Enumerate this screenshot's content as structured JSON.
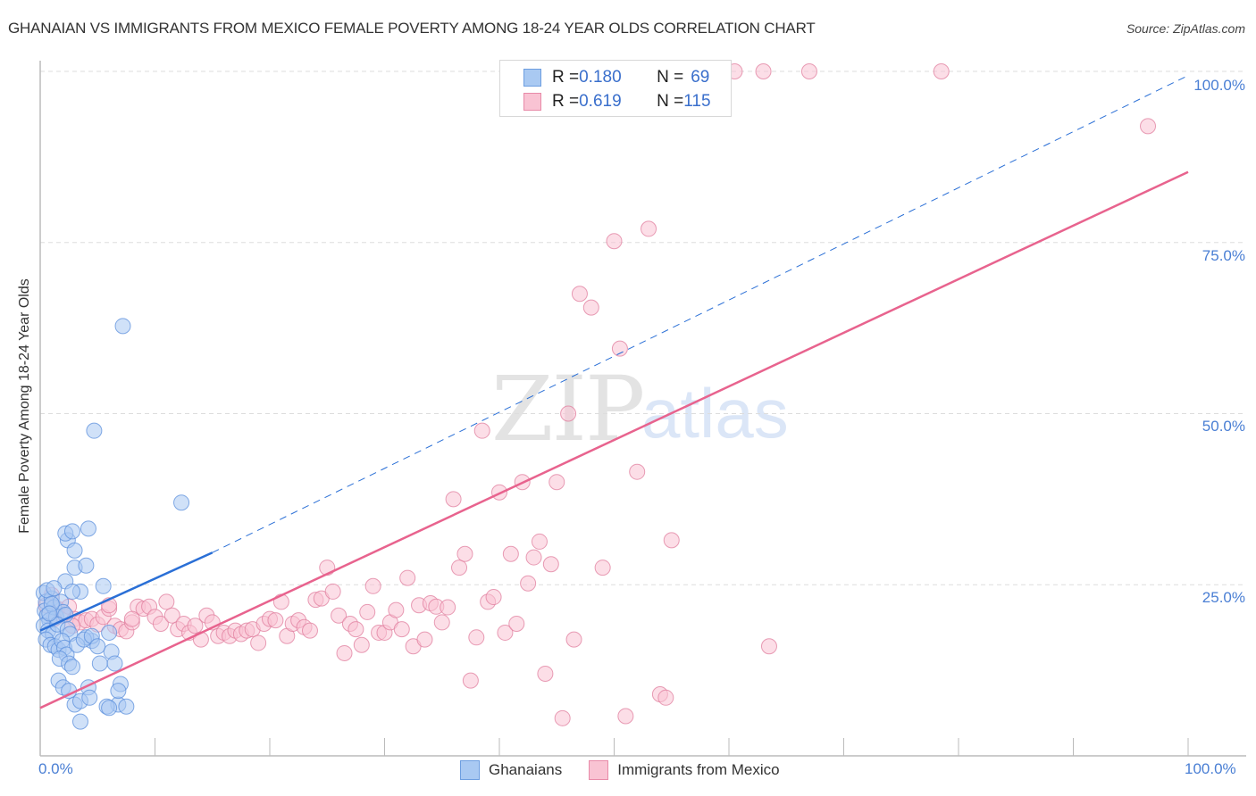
{
  "header": {
    "title": "GHANAIAN VS IMMIGRANTS FROM MEXICO FEMALE POVERTY AMONG 18-24 YEAR OLDS CORRELATION CHART",
    "source": "Source: ZipAtlas.com"
  },
  "watermark": {
    "zip": "ZIP",
    "atlas": "atlas"
  },
  "axes": {
    "ylabel": "Female Poverty Among 18-24 Year Olds",
    "yticks": [
      "100.0%",
      "75.0%",
      "50.0%",
      "25.0%"
    ],
    "xticks": [
      "0.0%",
      "100.0%"
    ]
  },
  "legend": {
    "rows": [
      {
        "r_label": "R = ",
        "r_value": "0.180",
        "n_label": "N = ",
        "n_value": "69",
        "color": "#a9c9f2",
        "border": "#6d9ee0"
      },
      {
        "r_label": "R = ",
        "r_value": "0.619",
        "n_label": "N = ",
        "n_value": "115",
        "color": "#f9c3d3",
        "border": "#e88aa8"
      }
    ]
  },
  "bottom_legend": [
    {
      "label": "Ghanaians",
      "color": "#a9c9f2",
      "border": "#6d9ee0"
    },
    {
      "label": "Immigrants from Mexico",
      "color": "#f9c3d3",
      "border": "#e88aa8"
    }
  ],
  "colors": {
    "blue_point": "#a9c9f2",
    "blue_stroke": "#5b8fdc",
    "blue_line": "#2a6fd6",
    "pink_point": "#f9c3d3",
    "pink_stroke": "#e07d9d",
    "pink_line": "#e8638e",
    "grid": "#dddddd",
    "axis": "#bbbbbb",
    "tick_label": "#4a7fd4"
  },
  "chart_data": {
    "type": "scatter",
    "title": "GHANAIAN VS IMMIGRANTS FROM MEXICO FEMALE POVERTY AMONG 18-24 YEAR OLDS CORRELATION CHART",
    "xlabel": "",
    "ylabel": "Female Poverty Among 18-24 Year Olds",
    "xlim": [
      0,
      100
    ],
    "ylim": [
      0,
      100
    ],
    "x_tick_labels": [
      "0.0%",
      "100.0%"
    ],
    "y_tick_labels": [
      "25.0%",
      "50.0%",
      "75.0%",
      "100.0%"
    ],
    "grid": true,
    "legend_position": "top-center",
    "series": [
      {
        "name": "Ghanaians",
        "R": 0.18,
        "N": 69,
        "color": "#a9c9f2",
        "trendline": {
          "x": [
            0,
            15,
            100
          ],
          "y": [
            18.3,
            29.7,
            99.4
          ],
          "solid_until_x": 15
        },
        "points": [
          [
            0.3,
            23.8
          ],
          [
            0.5,
            22.5
          ],
          [
            0.4,
            21.2
          ],
          [
            0.6,
            20.5
          ],
          [
            0.8,
            19.8
          ],
          [
            1.0,
            23.0
          ],
          [
            1.2,
            21.7
          ],
          [
            1.4,
            20.3
          ],
          [
            0.3,
            19.0
          ],
          [
            0.7,
            18.3
          ],
          [
            1.1,
            17.8
          ],
          [
            0.5,
            17.0
          ],
          [
            0.9,
            16.2
          ],
          [
            1.3,
            16.0
          ],
          [
            1.6,
            15.5
          ],
          [
            0.6,
            24.2
          ],
          [
            1.8,
            22.5
          ],
          [
            2.0,
            21.0
          ],
          [
            2.2,
            20.6
          ],
          [
            1.5,
            19.2
          ],
          [
            2.4,
            18.5
          ],
          [
            2.6,
            17.8
          ],
          [
            1.9,
            16.8
          ],
          [
            2.1,
            15.8
          ],
          [
            2.3,
            14.8
          ],
          [
            1.7,
            14.2
          ],
          [
            2.5,
            13.5
          ],
          [
            2.8,
            13.0
          ],
          [
            1.6,
            11.0
          ],
          [
            2.0,
            10.0
          ],
          [
            2.5,
            9.5
          ],
          [
            3.0,
            7.5
          ],
          [
            3.5,
            8.0
          ],
          [
            3.5,
            5.0
          ],
          [
            4.2,
            10.0
          ],
          [
            4.3,
            8.5
          ],
          [
            4.5,
            16.8
          ],
          [
            4.0,
            17.3
          ],
          [
            3.2,
            16.2
          ],
          [
            3.8,
            17.0
          ],
          [
            5.2,
            13.5
          ],
          [
            5.5,
            24.8
          ],
          [
            6.2,
            15.2
          ],
          [
            6.5,
            13.5
          ],
          [
            6.0,
            18.0
          ],
          [
            6.8,
            7.5
          ],
          [
            5.8,
            7.2
          ],
          [
            6.0,
            7.0
          ],
          [
            7.0,
            10.5
          ],
          [
            6.8,
            9.5
          ],
          [
            7.5,
            7.2
          ],
          [
            2.4,
            31.5
          ],
          [
            2.2,
            32.5
          ],
          [
            2.8,
            32.8
          ],
          [
            3.0,
            30.0
          ],
          [
            3.0,
            27.5
          ],
          [
            4.0,
            27.8
          ],
          [
            4.2,
            33.2
          ],
          [
            2.2,
            25.5
          ],
          [
            3.5,
            24.0
          ],
          [
            2.8,
            24.0
          ],
          [
            1.2,
            24.5
          ],
          [
            4.5,
            17.5
          ],
          [
            5.0,
            16.0
          ],
          [
            7.2,
            62.8
          ],
          [
            4.7,
            47.5
          ],
          [
            12.3,
            37.0
          ],
          [
            1.0,
            22.2
          ],
          [
            0.8,
            20.8
          ]
        ]
      },
      {
        "name": "Immigrants from Mexico",
        "R": 0.619,
        "N": 115,
        "color": "#f9c3d3",
        "trendline": {
          "x": [
            0,
            100
          ],
          "y": [
            7.0,
            85.3
          ]
        },
        "points": [
          [
            1.5,
            21.5
          ],
          [
            2.0,
            20.5
          ],
          [
            2.5,
            21.8
          ],
          [
            3.0,
            20.0
          ],
          [
            3.5,
            19.5
          ],
          [
            4.0,
            19.8
          ],
          [
            4.5,
            20.0
          ],
          [
            5.0,
            19.2
          ],
          [
            5.5,
            20.3
          ],
          [
            6.0,
            21.5
          ],
          [
            6.5,
            19.0
          ],
          [
            7.0,
            18.5
          ],
          [
            7.5,
            18.2
          ],
          [
            8.0,
            19.5
          ],
          [
            8.5,
            21.8
          ],
          [
            9.0,
            21.5
          ],
          [
            9.5,
            21.8
          ],
          [
            10.0,
            20.3
          ],
          [
            10.5,
            19.3
          ],
          [
            11.0,
            22.5
          ],
          [
            11.5,
            20.5
          ],
          [
            12.0,
            18.5
          ],
          [
            12.5,
            19.3
          ],
          [
            13.0,
            18.0
          ],
          [
            13.5,
            19.0
          ],
          [
            14.0,
            17.0
          ],
          [
            14.5,
            20.5
          ],
          [
            15.0,
            19.5
          ],
          [
            15.5,
            17.5
          ],
          [
            16.0,
            18.0
          ],
          [
            16.5,
            17.5
          ],
          [
            17.0,
            18.3
          ],
          [
            17.5,
            17.8
          ],
          [
            18.0,
            18.3
          ],
          [
            18.5,
            18.5
          ],
          [
            19.0,
            16.5
          ],
          [
            19.5,
            19.3
          ],
          [
            20.0,
            20.0
          ],
          [
            20.5,
            19.8
          ],
          [
            21.0,
            22.5
          ],
          [
            21.5,
            17.5
          ],
          [
            22.0,
            19.3
          ],
          [
            22.5,
            19.8
          ],
          [
            23.0,
            18.8
          ],
          [
            23.5,
            18.3
          ],
          [
            24.0,
            22.8
          ],
          [
            24.5,
            23.0
          ],
          [
            25.0,
            27.5
          ],
          [
            25.5,
            24.0
          ],
          [
            26.0,
            20.5
          ],
          [
            26.5,
            15.0
          ],
          [
            27.0,
            19.3
          ],
          [
            27.5,
            18.5
          ],
          [
            28.0,
            16.2
          ],
          [
            28.5,
            21.0
          ],
          [
            29.0,
            24.8
          ],
          [
            29.5,
            18.0
          ],
          [
            30.0,
            18.0
          ],
          [
            30.5,
            19.5
          ],
          [
            31.0,
            21.3
          ],
          [
            31.5,
            18.5
          ],
          [
            32.0,
            26.0
          ],
          [
            32.5,
            16.0
          ],
          [
            33.0,
            22.0
          ],
          [
            33.5,
            17.0
          ],
          [
            34.0,
            22.3
          ],
          [
            34.5,
            21.8
          ],
          [
            35.0,
            19.5
          ],
          [
            35.5,
            21.7
          ],
          [
            36.0,
            37.5
          ],
          [
            36.5,
            27.5
          ],
          [
            37.0,
            29.5
          ],
          [
            37.5,
            11.0
          ],
          [
            38.0,
            17.3
          ],
          [
            38.5,
            47.5
          ],
          [
            39.0,
            22.5
          ],
          [
            39.5,
            23.2
          ],
          [
            40.0,
            38.5
          ],
          [
            40.5,
            18.0
          ],
          [
            41.0,
            29.5
          ],
          [
            41.5,
            19.3
          ],
          [
            42.0,
            40.0
          ],
          [
            42.5,
            25.2
          ],
          [
            43.0,
            29.0
          ],
          [
            43.5,
            31.3
          ],
          [
            44.0,
            12.0
          ],
          [
            44.5,
            28.0
          ],
          [
            45.0,
            40.0
          ],
          [
            45.5,
            5.5
          ],
          [
            46.0,
            50.0
          ],
          [
            46.5,
            17.0
          ],
          [
            47.0,
            67.5
          ],
          [
            48.0,
            65.5
          ],
          [
            49.0,
            27.5
          ],
          [
            50.0,
            75.2
          ],
          [
            50.5,
            59.5
          ],
          [
            51.0,
            5.8
          ],
          [
            52.0,
            41.5
          ],
          [
            53.0,
            77.0
          ],
          [
            54.0,
            9.0
          ],
          [
            54.5,
            8.5
          ],
          [
            55.0,
            31.5
          ],
          [
            57.0,
            100
          ],
          [
            60.5,
            100
          ],
          [
            63.0,
            100
          ],
          [
            67.0,
            100
          ],
          [
            78.5,
            100
          ],
          [
            96.5,
            92.0
          ],
          [
            63.5,
            16.0
          ],
          [
            8.0,
            20.0
          ],
          [
            6.0,
            22.0
          ],
          [
            1.0,
            23.5
          ],
          [
            0.5,
            22.0
          ],
          [
            1.2,
            20.0
          ],
          [
            2.8,
            19.0
          ]
        ]
      }
    ]
  }
}
